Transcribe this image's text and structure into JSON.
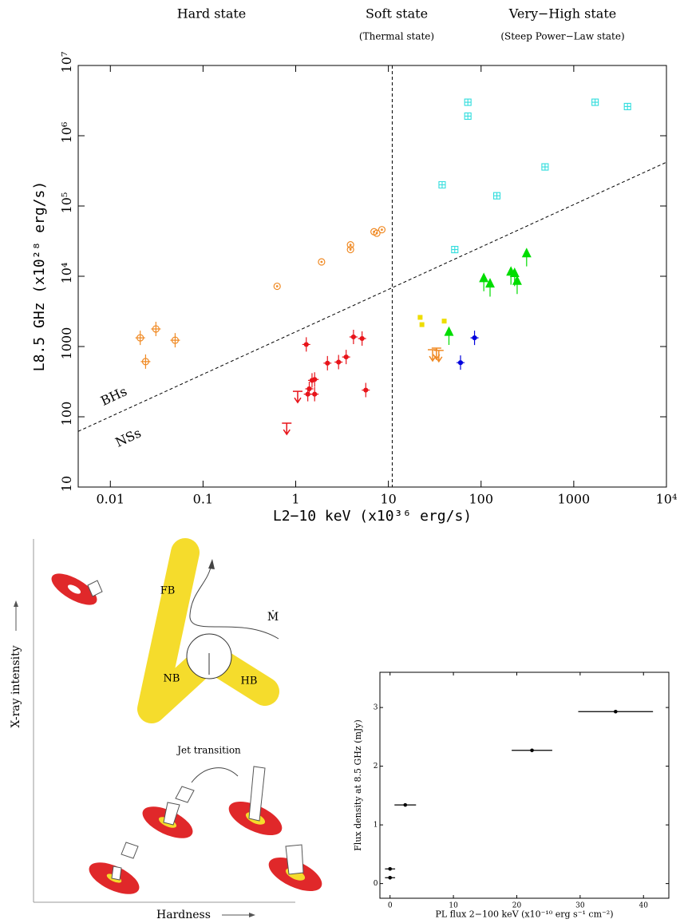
{
  "chart_data": [
    {
      "type": "scatter",
      "log_x": true,
      "log_y": true,
      "state_labels": [
        "Hard state",
        "Soft state",
        "(Thermal state)",
        "Very−High state",
        "(Steep Power−Law state)"
      ],
      "xlabel": "L2−10 keV (x10³⁶ erg/s)",
      "ylabel": "L8.5 GHz  (x10²⁸ erg/s)",
      "annotations": [
        "BHs",
        "NSs"
      ],
      "xlim": [
        0.0045,
        10000
      ],
      "ylim": [
        10,
        10000000
      ],
      "xticks": [
        0.01,
        0.1,
        1,
        10,
        100,
        1000,
        {
          "value": 10000,
          "label": "10⁴"
        }
      ],
      "yticks": [
        10,
        100,
        1000,
        {
          "value": 10000,
          "label": "10⁴"
        },
        {
          "value": 100000,
          "label": "10⁵"
        },
        {
          "value": 1000000,
          "label": "10⁶"
        },
        {
          "value": 10000000,
          "label": "10⁷"
        }
      ],
      "state_boundary_x": 11,
      "reference_line": {
        "x": [
          0.0045,
          10000
        ],
        "y": [
          62,
          420000
        ]
      },
      "series": [
        {
          "color": "#f08a24",
          "marker": "circle-dot",
          "x": [
            0.63,
            1.9,
            3.9,
            3.9,
            7,
            7.5,
            8.5
          ],
          "values": [
            7200,
            16000,
            28000,
            24000,
            43000,
            41000,
            46000
          ]
        },
        {
          "color": "#f08a24",
          "marker": "circle-cross",
          "x": [
            0.021,
            0.031,
            0.024,
            0.05
          ],
          "values": [
            1330,
            1780,
            610,
            1230
          ]
        },
        {
          "color": "#f08a24",
          "marker": "arrow",
          "x": [
            30,
            33,
            35
          ],
          "values": [
            900,
            950,
            880
          ]
        },
        {
          "color": "#e8141a",
          "marker": "dot-cross",
          "x": [
            1.3,
            2.2,
            2.9,
            3.5,
            4.2,
            5.2,
            5.7,
            1.5,
            1.6,
            1.4,
            1.35,
            1.6
          ],
          "values": [
            1070,
            580,
            600,
            710,
            1370,
            1300,
            240,
            330,
            340,
            250,
            210,
            210
          ]
        },
        {
          "color": "#e8141a",
          "marker": "arrow",
          "x": [
            1.05,
            0.8
          ],
          "values": [
            230,
            81
          ]
        },
        {
          "color": "#eedd00",
          "marker": "square",
          "x": [
            22,
            23,
            40
          ],
          "values": [
            2600,
            2050,
            2300
          ]
        },
        {
          "color": "#00dd00",
          "marker": "triangle",
          "x": [
            45,
            107,
            125,
            210,
            230,
            245,
            310
          ],
          "values": [
            1600,
            9300,
            7800,
            11500,
            11000,
            8500,
            21000
          ]
        },
        {
          "color": "#0000dd",
          "marker": "dot-cross",
          "x": [
            60,
            85
          ],
          "values": [
            590,
            1330
          ]
        },
        {
          "color": "#33dddd",
          "marker": "square-cross",
          "x": [
            72,
            72,
            38,
            148,
            52,
            490,
            1700,
            3800
          ],
          "values": [
            3000000,
            1900000,
            200000,
            140000,
            24000,
            360000,
            3000000,
            2600000
          ]
        }
      ]
    },
    {
      "type": "scatter",
      "xlabel": "PL flux 2−100 keV  (x10⁻¹⁰ erg s⁻¹ cm⁻²)",
      "ylabel": "Flux density at 8.5 GHz (mJy)",
      "xlim": [
        -1.6,
        44
      ],
      "ylim": [
        -0.25,
        3.6
      ],
      "xticks": [
        0,
        10,
        20,
        30,
        40
      ],
      "yticks": [
        0,
        1,
        2,
        3
      ],
      "series": [
        {
          "color": "#000000",
          "marker": "dot",
          "x": [
            2.4,
            22.4,
            35.6,
            0,
            0
          ],
          "xerr": [
            1.7,
            3.2,
            5.9,
            0.8,
            0.8
          ],
          "values": [
            1.34,
            2.27,
            2.93,
            0.25,
            0.1
          ]
        }
      ]
    }
  ],
  "diagram": {
    "labels": {
      "fb": "FB",
      "nb": "NB",
      "hb": "HB",
      "mdot": "Ṁ",
      "jet": "Jet transition",
      "yaxis": "X-ray intensity",
      "xaxis": "Hardness"
    }
  }
}
